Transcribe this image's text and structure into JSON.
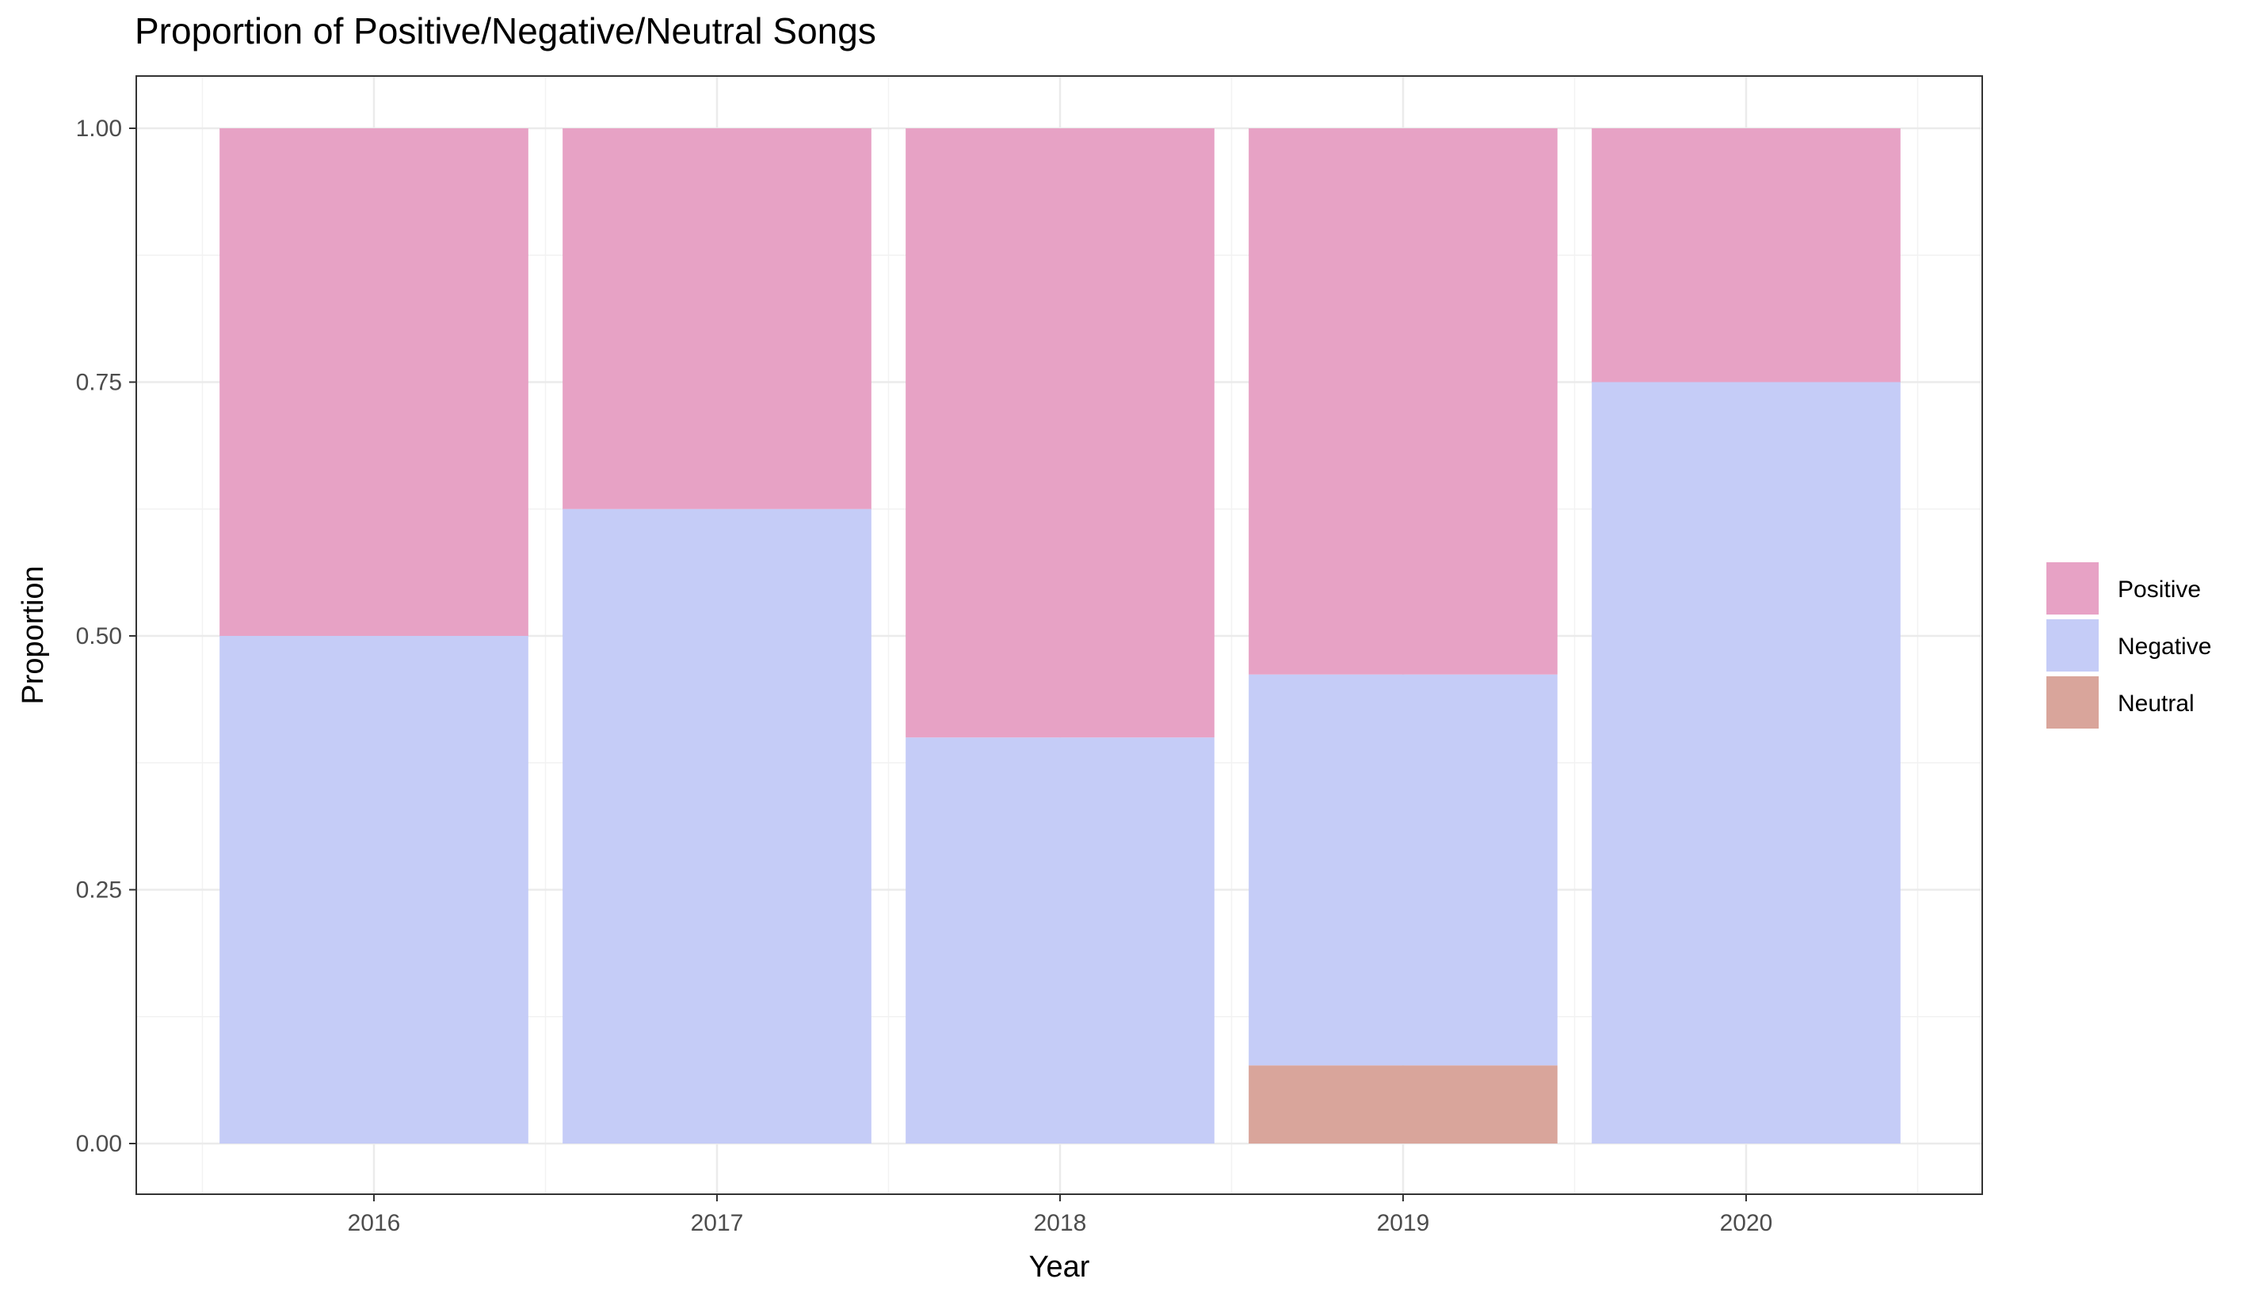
{
  "chart_data": {
    "type": "bar",
    "stacked": true,
    "title": "Proportion of Positive/Negative/Neutral Songs",
    "xlabel": "Year",
    "ylabel": "Proportion",
    "categories": [
      "2016",
      "2017",
      "2018",
      "2019",
      "2020"
    ],
    "ylim": [
      0,
      1
    ],
    "yticks": [
      "0.00",
      "0.25",
      "0.50",
      "0.75",
      "1.00"
    ],
    "grid": true,
    "legend_position": "right",
    "series": [
      {
        "name": "Neutral",
        "color": "#d9a59b",
        "values": [
          0,
          0,
          0,
          0.077,
          0
        ]
      },
      {
        "name": "Negative",
        "color": "#c5ccf7",
        "values": [
          0.5,
          0.625,
          0.4,
          0.385,
          0.75
        ]
      },
      {
        "name": "Positive",
        "color": "#e7a2c5",
        "values": [
          0.5,
          0.375,
          0.6,
          0.538,
          0.25
        ]
      }
    ],
    "legend_order": [
      "Positive",
      "Negative",
      "Neutral"
    ]
  }
}
